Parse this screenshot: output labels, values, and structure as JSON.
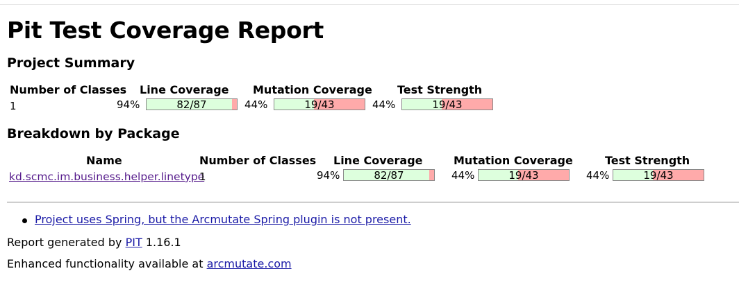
{
  "page": {
    "title": "Pit Test Coverage Report"
  },
  "project_summary": {
    "heading": "Project Summary",
    "headers": {
      "classes": "Number of Classes",
      "line": "Line Coverage",
      "mutation": "Mutation Coverage",
      "strength": "Test Strength"
    },
    "classes": "1",
    "line": {
      "percent": "94%",
      "ratio": "82/87",
      "fraction": 0.943
    },
    "mutation": {
      "percent": "44%",
      "ratio": "19/43",
      "fraction": 0.442
    },
    "strength": {
      "percent": "44%",
      "ratio": "19/43",
      "fraction": 0.442
    }
  },
  "breakdown": {
    "heading": "Breakdown by Package",
    "headers": {
      "name": "Name",
      "classes": "Number of Classes",
      "line": "Line Coverage",
      "mutation": "Mutation Coverage",
      "strength": "Test Strength"
    },
    "rows": [
      {
        "name": "kd.scmc.im.business.helper.linetype",
        "classes": "1",
        "line": {
          "percent": "94%",
          "ratio": "82/87",
          "fraction": 0.943
        },
        "mutation": {
          "percent": "44%",
          "ratio": "19/43",
          "fraction": 0.442
        },
        "strength": {
          "percent": "44%",
          "ratio": "19/43",
          "fraction": 0.442
        }
      }
    ]
  },
  "notes": [
    "Project uses Spring, but the Arcmutate Spring plugin is not present."
  ],
  "footer": {
    "generated_prefix": "Report generated by",
    "pit_link": "PIT",
    "version": "1.16.1",
    "enhanced_prefix": "Enhanced functionality available at",
    "arcmutate_link": "arcmutate.com"
  },
  "colors": {
    "covered": "#ddffdd",
    "uncovered": "#ffaaaa",
    "link": "#1a1aa6",
    "visited_link": "#551a8b"
  }
}
